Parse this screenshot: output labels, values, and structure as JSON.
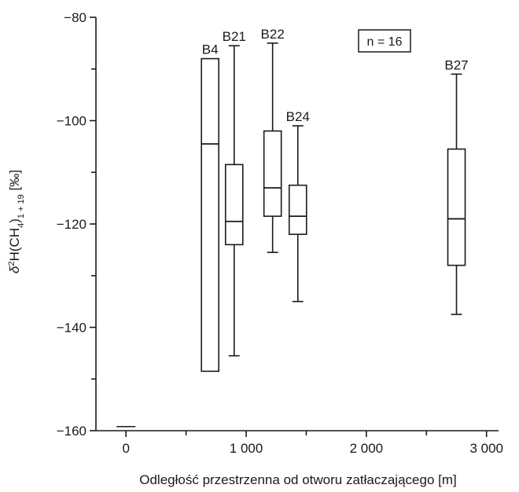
{
  "chart_data": {
    "type": "box",
    "xlabel": "Odległość przestrzenna od otworu zatłaczającego [m]",
    "ylabel": {
      "delta": "δ",
      "sup2": "2",
      "h": "H(CH",
      "sub4": "4",
      "close": ")",
      "sub": "1 + 19",
      "unit": " [‰]"
    },
    "annotation": "n = 16",
    "xlim": [
      -250,
      3100
    ],
    "ylim": [
      -160,
      -80
    ],
    "x_ticks": [
      {
        "value": 0,
        "label": "0"
      },
      {
        "value": 1000,
        "label": "1 000"
      },
      {
        "value": 2000,
        "label": "2 000"
      },
      {
        "value": 3000,
        "label": "3 000"
      }
    ],
    "x_minor_ticks": [
      500,
      1500,
      2500
    ],
    "y_ticks": [
      {
        "value": -80,
        "label": "−80"
      },
      {
        "value": -100,
        "label": "−100"
      },
      {
        "value": -120,
        "label": "−120"
      },
      {
        "value": -140,
        "label": "−140"
      },
      {
        "value": -160,
        "label": "−160"
      }
    ],
    "y_minor_ticks": [
      -90,
      -110,
      -130,
      -150
    ],
    "single_points": [
      {
        "x": 0,
        "y": -159.2
      }
    ],
    "boxes": [
      {
        "label": "B4",
        "x": 700,
        "q1": -148.5,
        "median": -104.5,
        "q3": -88,
        "min": -148.5,
        "max": -88
      },
      {
        "label": "B21",
        "x": 900,
        "q1": -124,
        "median": -119.5,
        "q3": -108.5,
        "min": -145.5,
        "max": -85.5
      },
      {
        "label": "B22",
        "x": 1220,
        "q1": -118.5,
        "median": -113,
        "q3": -102,
        "min": -125.5,
        "max": -85
      },
      {
        "label": "B24",
        "x": 1430,
        "q1": -122,
        "median": -118.5,
        "q3": -112.5,
        "min": -135,
        "max": -101
      },
      {
        "label": "B27",
        "x": 2750,
        "q1": -128,
        "median": -119,
        "q3": -105.5,
        "min": -137.5,
        "max": -91
      }
    ]
  }
}
